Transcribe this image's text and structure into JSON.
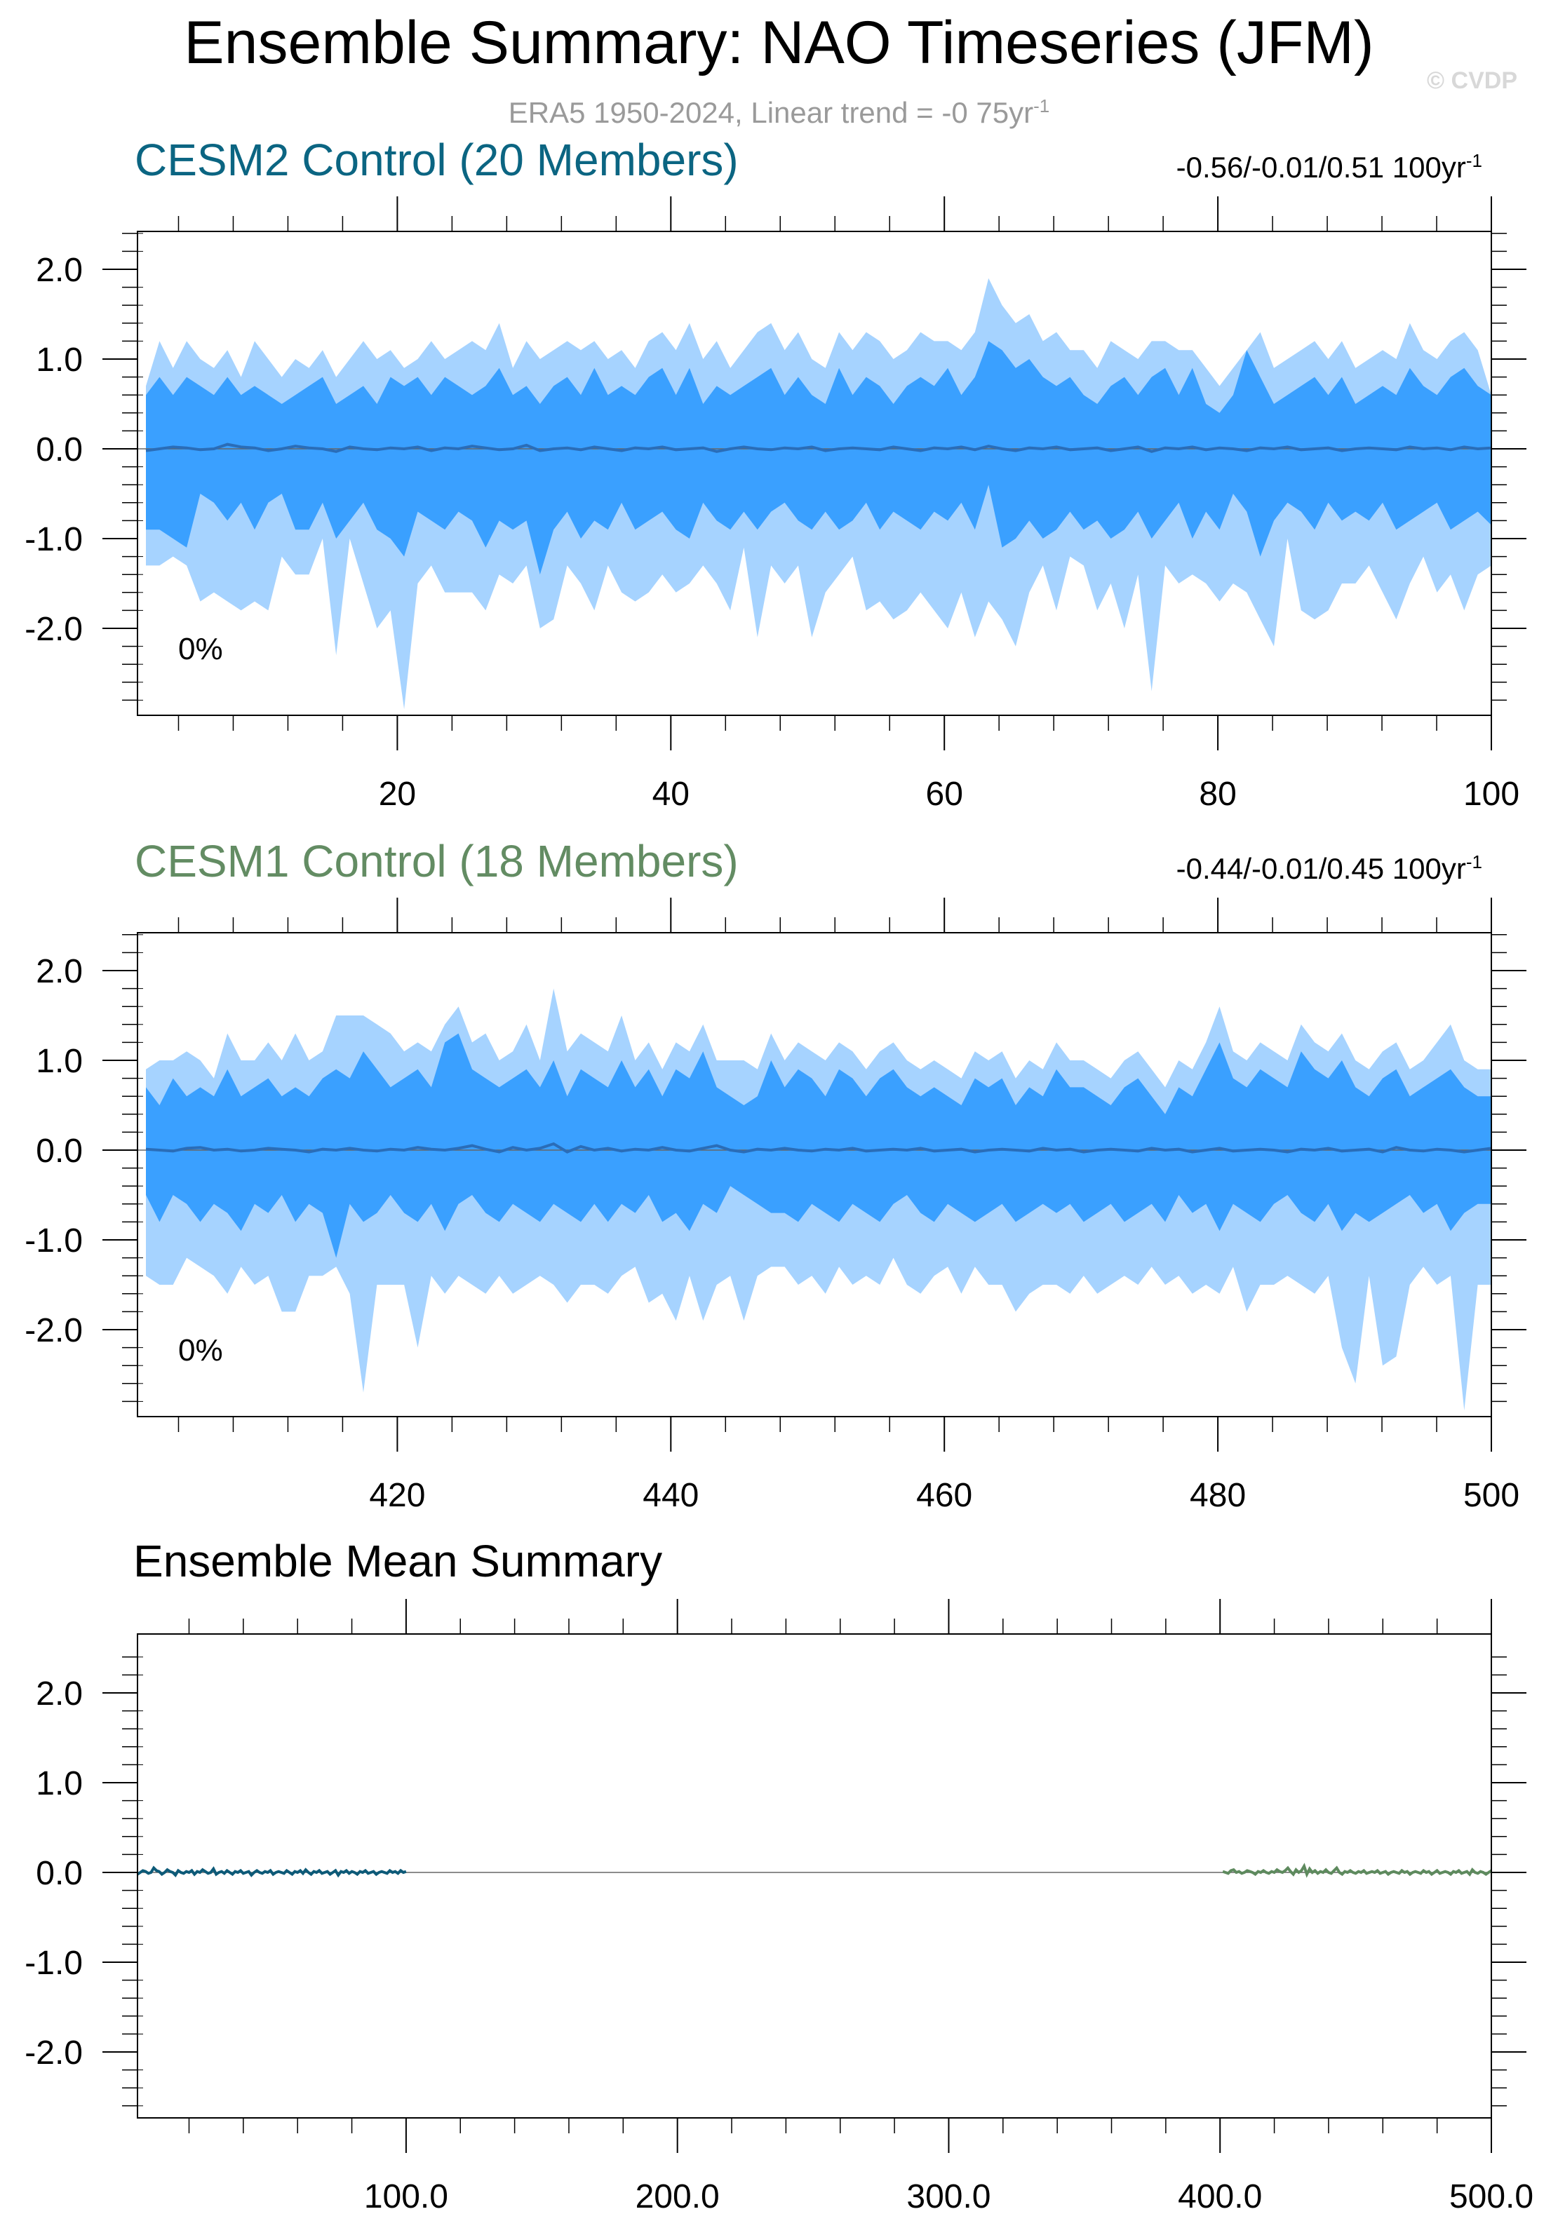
{
  "title": "Ensemble Summary: NAO Timeseries (JFM)",
  "subtitle": "ERA5 1950-2024, Linear trend = -0 75yr",
  "subtitle_sup": "-1",
  "watermark": "© CVDP",
  "colors": {
    "band_outer": "#a6d3ff",
    "band_inner": "#3aa0ff",
    "mean_line": "#2a6db8",
    "cesm2_title": "#0b6582",
    "cesm1_title": "#638c63",
    "cesm2_mean": "#0d5a78",
    "cesm1_mean": "#5e8a5e"
  },
  "panels": [
    {
      "title": "CESM2 Control (20 Members)",
      "stats": "-0.56/-0.01/0.51 100yr",
      "stats_sup": "-1",
      "percent_label": "0%",
      "x_tick_labels": [
        "20",
        "40",
        "60",
        "80",
        "100"
      ],
      "y_tick_labels": [
        "2.0",
        "1.0",
        "0.0",
        "-1.0",
        "-2.0"
      ]
    },
    {
      "title": "CESM1 Control (18 Members)",
      "stats": "-0.44/-0.01/0.45 100yr",
      "stats_sup": "-1",
      "percent_label": "0%",
      "x_tick_labels": [
        "420",
        "440",
        "460",
        "480",
        "500"
      ],
      "y_tick_labels": [
        "2.0",
        "1.0",
        "0.0",
        "-1.0",
        "-2.0"
      ]
    },
    {
      "title": "Ensemble Mean Summary",
      "x_tick_labels": [
        "100.0",
        "200.0",
        "300.0",
        "400.0",
        "500.0"
      ],
      "y_tick_labels": [
        "2.0",
        "1.0",
        "0.0",
        "-1.0",
        "-2.0"
      ]
    }
  ],
  "chart_data": [
    {
      "type": "area",
      "title": "CESM2 Control (20 Members)",
      "x_range": [
        1,
        100
      ],
      "y_range": [
        -3.0,
        2.4
      ],
      "x_ticks": [
        20,
        40,
        60,
        80,
        100
      ],
      "y_ticks": [
        2.0,
        1.0,
        0.0,
        -1.0,
        -2.0
      ],
      "series": {
        "max": [
          0.7,
          1.2,
          0.9,
          1.2,
          1.0,
          0.9,
          1.1,
          0.8,
          1.2,
          1.0,
          0.8,
          1.0,
          0.9,
          1.1,
          0.8,
          1.0,
          1.2,
          1.0,
          1.1,
          0.9,
          1.0,
          1.2,
          1.0,
          1.1,
          1.2,
          1.1,
          1.4,
          0.9,
          1.2,
          1.0,
          1.1,
          1.2,
          1.1,
          1.2,
          1.0,
          1.1,
          0.9,
          1.2,
          1.3,
          1.1,
          1.4,
          1.0,
          1.2,
          0.9,
          1.1,
          1.3,
          1.4,
          1.1,
          1.3,
          1.0,
          0.9,
          1.3,
          1.1,
          1.3,
          1.2,
          1.0,
          1.1,
          1.3,
          1.2,
          1.2,
          1.1,
          1.3,
          1.9,
          1.6,
          1.4,
          1.5,
          1.2,
          1.3,
          1.1,
          1.1,
          0.9,
          1.2,
          1.1,
          1.0,
          1.2,
          1.2,
          1.1,
          1.1,
          0.9,
          0.7,
          0.9,
          1.1,
          1.3,
          0.9,
          1.0,
          1.1,
          1.2,
          1.0,
          1.2,
          0.9,
          1.0,
          1.1,
          1.0,
          1.4,
          1.1,
          1.0,
          1.2,
          1.3,
          1.1,
          0.6
        ],
        "q_high": [
          0.6,
          0.8,
          0.6,
          0.8,
          0.7,
          0.6,
          0.8,
          0.6,
          0.7,
          0.6,
          0.5,
          0.6,
          0.7,
          0.8,
          0.5,
          0.6,
          0.7,
          0.5,
          0.8,
          0.7,
          0.8,
          0.6,
          0.8,
          0.7,
          0.6,
          0.7,
          0.9,
          0.6,
          0.7,
          0.5,
          0.7,
          0.8,
          0.6,
          0.9,
          0.6,
          0.7,
          0.6,
          0.8,
          0.9,
          0.6,
          0.9,
          0.5,
          0.7,
          0.6,
          0.7,
          0.8,
          0.9,
          0.6,
          0.8,
          0.6,
          0.5,
          0.9,
          0.6,
          0.8,
          0.7,
          0.5,
          0.7,
          0.8,
          0.7,
          0.9,
          0.6,
          0.8,
          1.2,
          1.1,
          0.9,
          1.0,
          0.8,
          0.7,
          0.8,
          0.6,
          0.5,
          0.7,
          0.8,
          0.6,
          0.8,
          0.9,
          0.6,
          0.9,
          0.5,
          0.4,
          0.6,
          1.1,
          0.8,
          0.5,
          0.6,
          0.7,
          0.8,
          0.6,
          0.8,
          0.5,
          0.6,
          0.7,
          0.6,
          0.9,
          0.7,
          0.6,
          0.8,
          0.9,
          0.7,
          0.6
        ],
        "mean": [
          -0.02,
          0.0,
          0.02,
          0.01,
          -0.01,
          0.0,
          0.05,
          0.02,
          0.01,
          -0.02,
          0.0,
          0.03,
          0.01,
          0.0,
          -0.03,
          0.02,
          0.0,
          -0.01,
          0.01,
          0.0,
          0.02,
          -0.02,
          0.01,
          0.0,
          0.03,
          0.01,
          -0.01,
          0.0,
          0.04,
          -0.02,
          0.0,
          0.01,
          -0.01,
          0.02,
          0.0,
          -0.02,
          0.01,
          0.0,
          0.02,
          -0.01,
          0.0,
          0.01,
          -0.03,
          0.0,
          0.02,
          0.0,
          -0.01,
          0.01,
          0.0,
          0.02,
          -0.02,
          0.0,
          0.01,
          0.0,
          -0.01,
          0.02,
          0.0,
          -0.02,
          0.01,
          0.0,
          0.02,
          -0.01,
          0.03,
          0.0,
          -0.02,
          0.01,
          0.0,
          0.02,
          -0.01,
          0.0,
          0.01,
          -0.02,
          0.0,
          0.02,
          -0.03,
          0.01,
          0.0,
          0.02,
          -0.01,
          0.01,
          0.0,
          -0.02,
          0.01,
          0.0,
          0.02,
          -0.01,
          0.0,
          0.01,
          -0.02,
          0.0,
          0.01,
          0.0,
          -0.01,
          0.02,
          0.0,
          0.01,
          -0.01,
          0.02,
          0.0,
          0.01
        ],
        "q_low": [
          -0.9,
          -0.9,
          -1.0,
          -1.1,
          -0.5,
          -0.6,
          -0.8,
          -0.6,
          -0.9,
          -0.6,
          -0.5,
          -0.9,
          -0.9,
          -0.6,
          -1.0,
          -0.8,
          -0.6,
          -0.9,
          -1.0,
          -1.2,
          -0.7,
          -0.8,
          -0.9,
          -0.7,
          -0.8,
          -1.1,
          -0.8,
          -0.9,
          -0.8,
          -1.4,
          -0.9,
          -0.7,
          -1.0,
          -0.8,
          -0.9,
          -0.6,
          -0.9,
          -0.8,
          -0.7,
          -0.9,
          -1.0,
          -0.6,
          -0.8,
          -0.9,
          -0.7,
          -0.9,
          -0.7,
          -0.6,
          -0.8,
          -0.9,
          -0.7,
          -0.9,
          -0.8,
          -0.6,
          -0.9,
          -0.7,
          -0.8,
          -0.9,
          -0.7,
          -0.8,
          -0.6,
          -0.9,
          -0.4,
          -1.1,
          -1.0,
          -0.8,
          -1.0,
          -0.9,
          -0.7,
          -0.9,
          -0.8,
          -1.0,
          -0.9,
          -0.7,
          -1.0,
          -0.8,
          -0.6,
          -1.0,
          -0.7,
          -0.9,
          -0.5,
          -0.7,
          -1.2,
          -0.8,
          -0.6,
          -0.7,
          -0.9,
          -0.6,
          -0.8,
          -0.7,
          -0.8,
          -0.6,
          -0.9,
          -0.8,
          -0.7,
          -0.6,
          -0.9,
          -0.8,
          -0.7,
          -0.85
        ],
        "min": [
          -1.3,
          -1.3,
          -1.2,
          -1.3,
          -1.7,
          -1.6,
          -1.7,
          -1.8,
          -1.7,
          -1.8,
          -1.2,
          -1.4,
          -1.4,
          -1.0,
          -2.3,
          -1.0,
          -1.5,
          -2.0,
          -1.8,
          -2.9,
          -1.5,
          -1.3,
          -1.6,
          -1.6,
          -1.6,
          -1.8,
          -1.4,
          -1.5,
          -1.3,
          -2.0,
          -1.9,
          -1.3,
          -1.5,
          -1.8,
          -1.3,
          -1.6,
          -1.7,
          -1.6,
          -1.4,
          -1.6,
          -1.5,
          -1.3,
          -1.5,
          -1.8,
          -1.1,
          -2.1,
          -1.3,
          -1.5,
          -1.3,
          -2.1,
          -1.6,
          -1.4,
          -1.2,
          -1.8,
          -1.7,
          -1.9,
          -1.8,
          -1.6,
          -1.8,
          -2.0,
          -1.6,
          -2.1,
          -1.7,
          -1.9,
          -2.2,
          -1.6,
          -1.3,
          -1.8,
          -1.2,
          -1.3,
          -1.8,
          -1.5,
          -2.0,
          -1.4,
          -2.7,
          -1.3,
          -1.5,
          -1.4,
          -1.5,
          -1.7,
          -1.5,
          -1.6,
          -1.9,
          -2.2,
          -1.0,
          -1.8,
          -1.9,
          -1.8,
          -1.5,
          -1.5,
          -1.3,
          -1.6,
          -1.9,
          -1.5,
          -1.2,
          -1.6,
          -1.4,
          -1.8,
          -1.4,
          -1.3
        ]
      }
    },
    {
      "type": "area",
      "title": "CESM1 Control (18 Members)",
      "x_range": [
        401,
        500
      ],
      "y_range": [
        -3.0,
        2.4
      ],
      "x_ticks": [
        420,
        440,
        460,
        480,
        500
      ],
      "y_ticks": [
        2.0,
        1.0,
        0.0,
        -1.0,
        -2.0
      ],
      "series": {
        "max": [
          0.9,
          1.0,
          1.0,
          1.1,
          1.0,
          0.8,
          1.3,
          1.0,
          1.0,
          1.2,
          1.0,
          1.3,
          1.0,
          1.1,
          1.5,
          1.5,
          1.5,
          1.4,
          1.3,
          1.1,
          1.2,
          1.1,
          1.4,
          1.6,
          1.2,
          1.3,
          1.0,
          1.1,
          1.4,
          1.0,
          1.8,
          1.1,
          1.3,
          1.2,
          1.1,
          1.5,
          1.0,
          1.2,
          0.9,
          1.2,
          1.1,
          1.4,
          1.0,
          1.0,
          1.0,
          0.9,
          1.3,
          1.0,
          1.2,
          1.1,
          1.0,
          1.2,
          1.1,
          0.9,
          1.1,
          1.2,
          1.0,
          0.9,
          1.0,
          0.9,
          0.8,
          1.1,
          1.0,
          1.1,
          0.8,
          1.0,
          0.9,
          1.2,
          1.0,
          1.0,
          0.9,
          0.8,
          1.0,
          1.1,
          0.9,
          0.7,
          1.0,
          0.9,
          1.2,
          1.6,
          1.1,
          1.0,
          1.2,
          1.1,
          1.0,
          1.4,
          1.2,
          1.1,
          1.3,
          1.0,
          0.9,
          1.1,
          1.2,
          0.9,
          1.0,
          1.2,
          1.4,
          1.0,
          0.9,
          0.9
        ],
        "q_high": [
          0.7,
          0.5,
          0.8,
          0.6,
          0.7,
          0.6,
          0.9,
          0.6,
          0.7,
          0.8,
          0.6,
          0.7,
          0.6,
          0.8,
          0.9,
          0.8,
          1.1,
          0.9,
          0.7,
          0.8,
          0.9,
          0.7,
          1.2,
          1.3,
          0.9,
          0.8,
          0.7,
          0.8,
          0.9,
          0.7,
          1.0,
          0.6,
          0.9,
          0.8,
          0.7,
          1.0,
          0.7,
          0.9,
          0.6,
          0.9,
          0.8,
          1.1,
          0.7,
          0.6,
          0.5,
          0.6,
          1.0,
          0.7,
          0.9,
          0.8,
          0.6,
          0.9,
          0.8,
          0.6,
          0.8,
          0.9,
          0.7,
          0.6,
          0.7,
          0.6,
          0.5,
          0.8,
          0.7,
          0.8,
          0.5,
          0.7,
          0.6,
          0.9,
          0.7,
          0.7,
          0.6,
          0.5,
          0.7,
          0.8,
          0.6,
          0.4,
          0.7,
          0.6,
          0.9,
          1.2,
          0.8,
          0.7,
          0.9,
          0.8,
          0.7,
          1.1,
          0.9,
          0.8,
          1.0,
          0.7,
          0.6,
          0.8,
          0.9,
          0.6,
          0.7,
          0.8,
          0.9,
          0.7,
          0.6,
          0.6
        ],
        "mean": [
          0.01,
          0.0,
          -0.01,
          0.02,
          0.03,
          0.0,
          0.01,
          -0.01,
          0.0,
          0.02,
          0.01,
          0.0,
          -0.02,
          0.01,
          0.0,
          0.02,
          0.0,
          -0.01,
          0.01,
          0.0,
          0.03,
          0.01,
          0.0,
          0.02,
          0.05,
          0.01,
          -0.02,
          0.03,
          0.0,
          0.02,
          0.07,
          -0.02,
          0.04,
          0.0,
          0.02,
          -0.01,
          0.01,
          0.0,
          0.03,
          0.0,
          -0.01,
          0.02,
          0.05,
          0.0,
          -0.02,
          0.01,
          0.0,
          0.02,
          0.0,
          -0.01,
          0.01,
          0.0,
          0.02,
          -0.01,
          0.0,
          0.01,
          0.0,
          0.02,
          -0.01,
          0.0,
          0.01,
          -0.02,
          0.0,
          0.01,
          0.0,
          -0.01,
          0.02,
          0.0,
          0.01,
          -0.02,
          0.0,
          0.01,
          0.0,
          -0.01,
          0.02,
          0.0,
          0.01,
          -0.02,
          0.0,
          0.02,
          -0.01,
          0.0,
          0.01,
          0.0,
          -0.02,
          0.01,
          0.0,
          0.02,
          -0.01,
          0.0,
          0.01,
          -0.02,
          0.03,
          0.0,
          -0.01,
          0.01,
          0.0,
          -0.02,
          0.0,
          0.02
        ],
        "q_low": [
          -0.5,
          -0.8,
          -0.5,
          -0.6,
          -0.8,
          -0.6,
          -0.7,
          -0.9,
          -0.6,
          -0.7,
          -0.5,
          -0.8,
          -0.6,
          -0.7,
          -1.2,
          -0.6,
          -0.8,
          -0.7,
          -0.5,
          -0.7,
          -0.8,
          -0.6,
          -0.9,
          -0.6,
          -0.5,
          -0.7,
          -0.8,
          -0.6,
          -0.7,
          -0.8,
          -0.6,
          -0.7,
          -0.8,
          -0.6,
          -0.8,
          -0.6,
          -0.7,
          -0.5,
          -0.8,
          -0.7,
          -0.9,
          -0.6,
          -0.7,
          -0.4,
          -0.5,
          -0.6,
          -0.7,
          -0.7,
          -0.8,
          -0.6,
          -0.7,
          -0.8,
          -0.6,
          -0.7,
          -0.8,
          -0.6,
          -0.5,
          -0.7,
          -0.8,
          -0.6,
          -0.7,
          -0.8,
          -0.7,
          -0.6,
          -0.8,
          -0.7,
          -0.6,
          -0.7,
          -0.6,
          -0.8,
          -0.7,
          -0.6,
          -0.8,
          -0.7,
          -0.6,
          -0.8,
          -0.5,
          -0.7,
          -0.6,
          -0.9,
          -0.6,
          -0.7,
          -0.8,
          -0.6,
          -0.5,
          -0.7,
          -0.8,
          -0.6,
          -0.9,
          -0.7,
          -0.8,
          -0.7,
          -0.6,
          -0.5,
          -0.7,
          -0.6,
          -0.9,
          -0.7,
          -0.6,
          -0.6
        ],
        "min": [
          -1.4,
          -1.5,
          -1.5,
          -1.2,
          -1.3,
          -1.4,
          -1.6,
          -1.3,
          -1.5,
          -1.4,
          -1.8,
          -1.8,
          -1.4,
          -1.4,
          -1.3,
          -1.6,
          -2.7,
          -1.5,
          -1.5,
          -1.5,
          -2.2,
          -1.4,
          -1.6,
          -1.4,
          -1.5,
          -1.6,
          -1.4,
          -1.6,
          -1.5,
          -1.4,
          -1.5,
          -1.7,
          -1.5,
          -1.5,
          -1.6,
          -1.4,
          -1.3,
          -1.7,
          -1.6,
          -1.9,
          -1.4,
          -1.9,
          -1.5,
          -1.4,
          -1.9,
          -1.4,
          -1.3,
          -1.3,
          -1.5,
          -1.4,
          -1.6,
          -1.3,
          -1.5,
          -1.4,
          -1.5,
          -1.2,
          -1.5,
          -1.6,
          -1.4,
          -1.3,
          -1.6,
          -1.3,
          -1.5,
          -1.5,
          -1.8,
          -1.6,
          -1.5,
          -1.5,
          -1.6,
          -1.4,
          -1.6,
          -1.5,
          -1.4,
          -1.5,
          -1.3,
          -1.5,
          -1.4,
          -1.6,
          -1.5,
          -1.6,
          -1.3,
          -1.8,
          -1.5,
          -1.5,
          -1.4,
          -1.5,
          -1.6,
          -1.4,
          -2.2,
          -2.6,
          -1.4,
          -2.4,
          -2.3,
          -1.5,
          -1.3,
          -1.5,
          -1.4,
          -2.9,
          -1.5,
          -1.5
        ]
      }
    },
    {
      "type": "line",
      "title": "Ensemble Mean Summary",
      "x_range": [
        1,
        500
      ],
      "y_range": [
        -3.0,
        2.4
      ],
      "x_ticks": [
        100.0,
        200.0,
        300.0,
        400.0,
        500.0
      ],
      "y_ticks": [
        2.0,
        1.0,
        0.0,
        -1.0,
        -2.0
      ],
      "series": [
        {
          "x_start": 1,
          "x_end": 100,
          "color_key": "cesm2_mean"
        },
        {
          "x_start": 401,
          "x_end": 500,
          "color_key": "cesm1_mean"
        }
      ]
    }
  ]
}
